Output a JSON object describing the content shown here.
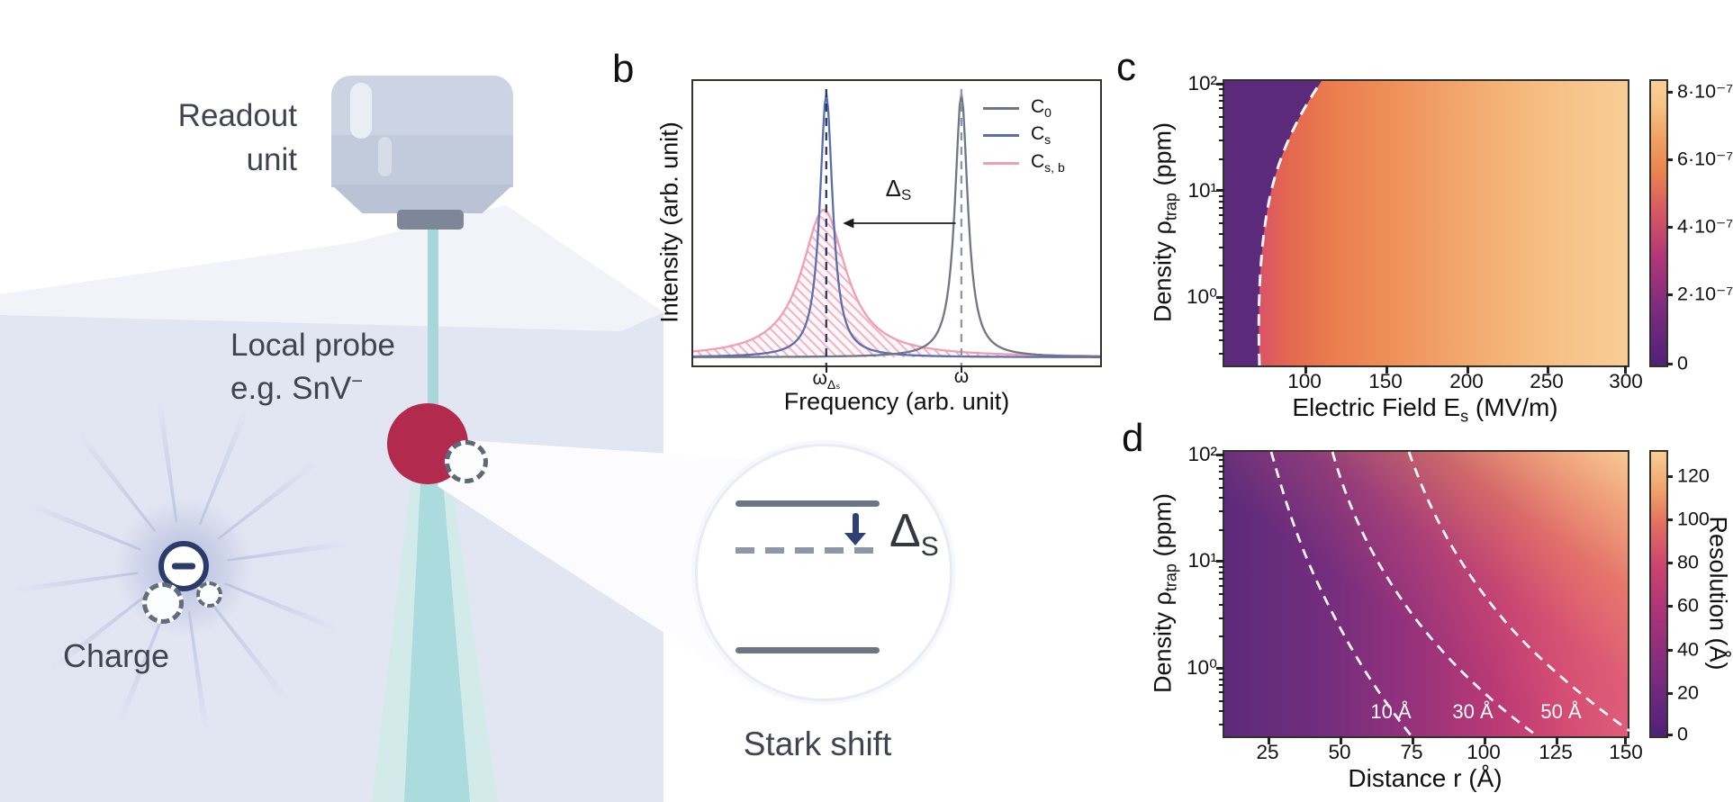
{
  "illustration": {
    "readout_line1": "Readout",
    "readout_line2": "unit",
    "probe_line1": "Local probe",
    "probe_line2": "e.g. SnV",
    "probe_sup": "−",
    "charge": "Charge",
    "stark": "Stark shift",
    "delta": "Δ",
    "delta_sub": "S",
    "colors": {
      "probe_red": "#b32a4f",
      "beam_teal": "#a7d7d8",
      "navy": "#2b3c6b",
      "surface_lavender": "#e2e6f3",
      "objective_gray": "#c2cbdc",
      "level_gray": "#6b7584"
    }
  },
  "panel_b": {
    "letter": "b",
    "ylabel": "Intensity (arb. unit)",
    "xlabel": "Frequency (arb. unit)",
    "arrow": "Δ",
    "arrow_sub": "S",
    "tick1": "ω",
    "tick1_sub": "Δₛ",
    "tick2": "ω",
    "legend": [
      {
        "m": "C",
        "s": "0"
      },
      {
        "m": "C",
        "s": "s"
      },
      {
        "m": "C",
        "s": "s, b"
      }
    ]
  },
  "panel_c": {
    "letter": "c",
    "ylabel_pre": "Density ρ",
    "ylabel_sub": "trap",
    "ylabel_post": " (ppm)",
    "xlabel_pre": "Electric Field E",
    "xlabel_sub": "s",
    "xlabel_post": " (MV/m)",
    "ytick0": "10²",
    "ytick1": "10¹",
    "ytick2": "10⁰",
    "xticks": [
      "100",
      "150",
      "200",
      "250",
      "300"
    ],
    "cticks": [
      "8·10⁻⁷",
      "6·10⁻⁷",
      "4·10⁻⁷",
      "2·10⁻⁷",
      "0"
    ]
  },
  "panel_d": {
    "letter": "d",
    "ylabel_pre": "Density ρ",
    "ylabel_sub": "trap",
    "ylabel_post": " (ppm)",
    "xlabel": "Distance r (Å)",
    "ytick0": "10²",
    "ytick1": "10¹",
    "ytick2": "10⁰",
    "xticks": [
      "25",
      "50",
      "75",
      "100",
      "125",
      "150"
    ],
    "cticks": [
      "120",
      "100",
      "80",
      "60",
      "40",
      "20",
      "0"
    ],
    "cbar_label": "Resolution (Å)",
    "contours": [
      "10 Å",
      "30 Å",
      "50 Å"
    ]
  },
  "chart_data": [
    {
      "id": "b",
      "type": "line",
      "xlabel": "Frequency (arb. unit)",
      "ylabel": "Intensity (arb. unit)",
      "x_axis_units": "fraction of plotted range (0–1), arbitrary units",
      "y_axis_units": "arbitrary units, baseline 0 to peak 1",
      "legend_position": "top-right",
      "grid": false,
      "series": [
        {
          "name": "C0",
          "color": "#6e7787",
          "shape": "lorentzian",
          "center_frac": 0.659,
          "halfwidth_frac": 0.019,
          "amplitude": 1.0,
          "style": "solid"
        },
        {
          "name": "Cs",
          "color": "#5b6fae",
          "shape": "lorentzian",
          "center_frac": 0.327,
          "halfwidth_frac": 0.019,
          "amplitude": 1.0,
          "style": "solid"
        },
        {
          "name": "Cs,b",
          "color": "#ef9fb4",
          "shape": "lorentzian",
          "center_frac": 0.321,
          "halfwidth_frac": 0.066,
          "amplitude": 0.56,
          "style": "solid with pink hatched area fill"
        }
      ],
      "annotations": [
        {
          "type": "arrow",
          "label": "ΔS",
          "y_frac": 0.5,
          "from_x_frac": 0.645,
          "to_x_frac": 0.368,
          "meaning": "Stark shift of Cs peak relative to C0"
        },
        {
          "type": "dashed-vline",
          "x_frac": 0.327,
          "color": "#1e3263",
          "tick_label": "ωΔₛ"
        },
        {
          "type": "dashed-vline",
          "x_frac": 0.659,
          "color": "#8a93a5",
          "tick_label": "ω"
        }
      ]
    },
    {
      "id": "c",
      "type": "heatmap",
      "xlabel": "Electric Field Es (MV/m)",
      "ylabel": "Density ρtrap (ppm)",
      "x_range": [
        50,
        300
      ],
      "x_ticks": [
        100,
        150,
        200,
        250,
        300
      ],
      "y_scale": "log",
      "y_range": [
        0.22,
        100
      ],
      "y_ticks": [
        1,
        10,
        100
      ],
      "colorbar": {
        "min": 0,
        "max": 8.3e-07,
        "ticks": [
          0,
          2e-07,
          4e-07,
          6e-07,
          8e-07
        ],
        "tick_labels": [
          "0",
          "2·10⁻⁷",
          "4·10⁻⁷",
          "6·10⁻⁷",
          "8·10⁻⁷"
        ]
      },
      "colormap": "plasma-like: dark purple → magenta → orange → light tan",
      "description": "Value ≈ 0 (dark purple) left of a threshold field; increases with Es and saturates near 8·10⁻⁷ toward 300 MV/m; threshold field grows with trap density",
      "threshold_contour_white_dashed": [
        {
          "Es": 70,
          "rho": 0.22
        },
        {
          "Es": 71,
          "rho": 1
        },
        {
          "Es": 78,
          "rho": 10
        },
        {
          "Es": 93,
          "rho": 50
        },
        {
          "Es": 110,
          "rho": 100
        }
      ]
    },
    {
      "id": "d",
      "type": "heatmap",
      "xlabel": "Distance r (Å)",
      "ylabel": "Density ρtrap (ppm)",
      "x_range": [
        10,
        150
      ],
      "x_ticks": [
        25,
        50,
        75,
        100,
        125,
        150
      ],
      "y_scale": "log",
      "y_range": [
        0.22,
        100
      ],
      "y_ticks": [
        1,
        10,
        100
      ],
      "colorbar": {
        "min": 0,
        "max": 131,
        "ticks": [
          0,
          20,
          40,
          60,
          80,
          100,
          120
        ],
        "label": "Resolution (Å)"
      },
      "colormap": "plasma-like: dark purple (low) → magenta → orange → light tan (high)",
      "description": "Resolution value grows with distance r and with trap density; lightest top-right corner ≈ 130 Å",
      "contours": [
        {
          "label": "10 Å",
          "points": [
            {
              "r": 27,
              "rho": 100
            },
            {
              "r": 40,
              "rho": 10
            },
            {
              "r": 57,
              "rho": 1
            },
            {
              "r": 73,
              "rho": 0.25
            }
          ]
        },
        {
          "label": "30 Å",
          "points": [
            {
              "r": 48,
              "rho": 100
            },
            {
              "r": 67,
              "rho": 10
            },
            {
              "r": 90,
              "rho": 1
            },
            {
              "r": 118,
              "rho": 0.25
            }
          ]
        },
        {
          "label": "50 Å",
          "points": [
            {
              "r": 75,
              "rho": 100
            },
            {
              "r": 97,
              "rho": 10
            },
            {
              "r": 127,
              "rho": 1
            },
            {
              "r": 150,
              "rho": 0.3
            }
          ]
        }
      ]
    }
  ]
}
